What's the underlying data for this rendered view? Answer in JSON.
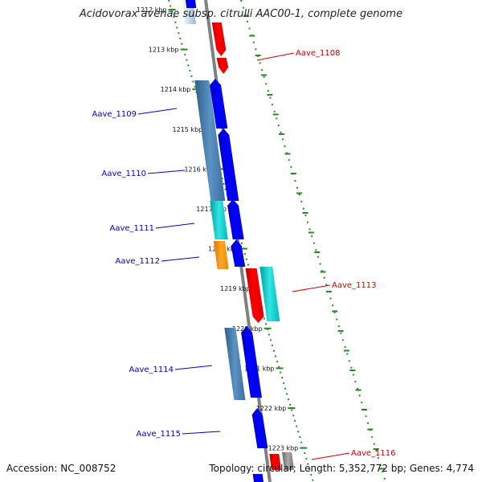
{
  "title": "Acidovorax avenae subsp. citrulli AAC00-1, complete genome",
  "accession": "Accession: NC_008752",
  "topology": "Topology: circular; Length: 5,352,772 bp; Genes: 4,774",
  "colors": {
    "plus_strand": "#ff0000",
    "minus_strand": "#0000ff",
    "plus_label": "#cc0000",
    "minus_label": "#0000cc",
    "backbone": "#808080",
    "ticks": "#228b22",
    "cyan": "#00cccc",
    "orange": "#ff9900",
    "steelblue": "#4682b4"
  },
  "ticks": [
    "1212 kbp",
    "1213 kbp",
    "1214 kbp",
    "1215 kbp",
    "1216 kbp",
    "1217 kbp",
    "1218 kbp",
    "1219 kbp",
    "1220 kbp",
    "1221 kbp",
    "1222 kbp",
    "1223 kbp"
  ],
  "genes": [
    {
      "name": "Aave_1108",
      "strand": "plus"
    },
    {
      "name": "Aave_1109",
      "strand": "minus"
    },
    {
      "name": "Aave_1110",
      "strand": "minus"
    },
    {
      "name": "Aave_1111",
      "strand": "minus"
    },
    {
      "name": "Aave_1112",
      "strand": "minus"
    },
    {
      "name": "Aave_1113",
      "strand": "plus"
    },
    {
      "name": "Aave_1114",
      "strand": "minus"
    },
    {
      "name": "Aave_1115",
      "strand": "minus"
    },
    {
      "name": "Aave_1116",
      "strand": "plus"
    }
  ]
}
